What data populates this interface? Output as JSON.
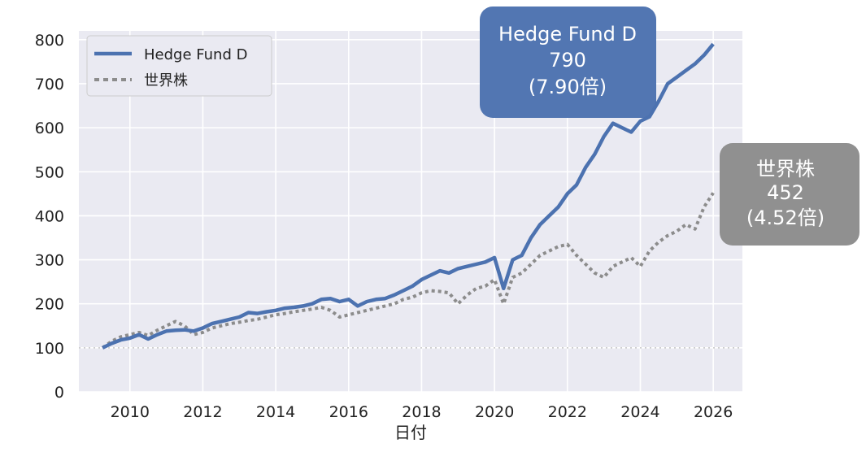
{
  "chart_data": {
    "type": "line",
    "xlabel": "日付",
    "ylabel": "",
    "xlim": [
      2008.6,
      2026.8
    ],
    "ylim": [
      0,
      820
    ],
    "x_ticks": [
      2010,
      2012,
      2014,
      2016,
      2018,
      2020,
      2022,
      2024,
      2026
    ],
    "y_ticks": [
      0,
      100,
      200,
      300,
      400,
      500,
      600,
      700,
      800
    ],
    "grid": true,
    "baseline": 100,
    "legend_position": "top-left",
    "series": [
      {
        "name": "Hedge Fund D",
        "color": "#4c72b0",
        "style": "solid",
        "x": [
          2009.25,
          2009.5,
          2009.75,
          2010.0,
          2010.25,
          2010.5,
          2010.75,
          2011.0,
          2011.25,
          2011.5,
          2011.75,
          2012.0,
          2012.25,
          2012.5,
          2012.75,
          2013.0,
          2013.25,
          2013.5,
          2013.75,
          2014.0,
          2014.25,
          2014.5,
          2014.75,
          2015.0,
          2015.25,
          2015.5,
          2015.75,
          2016.0,
          2016.25,
          2016.5,
          2016.75,
          2017.0,
          2017.25,
          2017.5,
          2017.75,
          2018.0,
          2018.25,
          2018.5,
          2018.75,
          2019.0,
          2019.25,
          2019.5,
          2019.75,
          2020.0,
          2020.25,
          2020.5,
          2020.75,
          2021.0,
          2021.25,
          2021.5,
          2021.75,
          2022.0,
          2022.25,
          2022.5,
          2022.75,
          2023.0,
          2023.25,
          2023.5,
          2023.75,
          2024.0,
          2024.25,
          2024.5,
          2024.75,
          2025.0,
          2025.25,
          2025.5,
          2025.75,
          2026.0
        ],
        "y": [
          100,
          110,
          118,
          122,
          130,
          120,
          130,
          138,
          140,
          141,
          138,
          145,
          155,
          160,
          165,
          170,
          180,
          178,
          182,
          185,
          190,
          192,
          195,
          200,
          210,
          212,
          205,
          210,
          195,
          205,
          210,
          212,
          220,
          230,
          240,
          255,
          265,
          275,
          270,
          280,
          285,
          290,
          295,
          305,
          235,
          300,
          310,
          350,
          380,
          400,
          420,
          450,
          470,
          510,
          540,
          580,
          610,
          600,
          590,
          615,
          625,
          660,
          700,
          715,
          730,
          745,
          765,
          790
        ]
      },
      {
        "name": "世界株",
        "color": "#8c8c8c",
        "style": "dotted",
        "x": [
          2009.25,
          2009.5,
          2009.75,
          2010.0,
          2010.25,
          2010.5,
          2010.75,
          2011.0,
          2011.25,
          2011.5,
          2011.75,
          2012.0,
          2012.25,
          2012.5,
          2012.75,
          2013.0,
          2013.25,
          2013.5,
          2013.75,
          2014.0,
          2014.25,
          2014.5,
          2014.75,
          2015.0,
          2015.25,
          2015.5,
          2015.75,
          2016.0,
          2016.25,
          2016.5,
          2016.75,
          2017.0,
          2017.25,
          2017.5,
          2017.75,
          2018.0,
          2018.25,
          2018.5,
          2018.75,
          2019.0,
          2019.25,
          2019.5,
          2019.75,
          2020.0,
          2020.25,
          2020.5,
          2020.75,
          2021.0,
          2021.25,
          2021.5,
          2021.75,
          2022.0,
          2022.25,
          2022.5,
          2022.75,
          2023.0,
          2023.25,
          2023.5,
          2023.75,
          2024.0,
          2024.25,
          2024.5,
          2024.75,
          2025.0,
          2025.25,
          2025.5,
          2025.75,
          2026.0
        ],
        "y": [
          100,
          115,
          125,
          130,
          135,
          128,
          140,
          150,
          160,
          150,
          130,
          135,
          145,
          150,
          155,
          158,
          162,
          165,
          170,
          175,
          178,
          182,
          185,
          188,
          192,
          185,
          170,
          175,
          180,
          185,
          190,
          195,
          200,
          210,
          215,
          225,
          230,
          228,
          225,
          200,
          220,
          235,
          240,
          255,
          200,
          260,
          270,
          290,
          310,
          320,
          330,
          335,
          310,
          290,
          270,
          260,
          285,
          295,
          305,
          285,
          320,
          340,
          355,
          365,
          380,
          370,
          420,
          452
        ]
      }
    ],
    "annotations": [
      {
        "series": "Hedge Fund D",
        "line1": "Hedge Fund D",
        "line2": "790",
        "line3": "(7.90倍)",
        "color": "#4c72b0"
      },
      {
        "series": "世界株",
        "line1": "世界株",
        "line2": "452",
        "line3": "(4.52倍)",
        "color": "#8c8c8c"
      }
    ]
  }
}
